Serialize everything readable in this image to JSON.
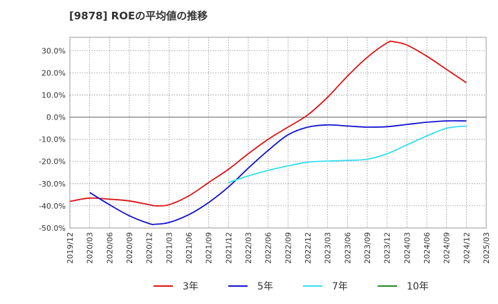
{
  "chart_data": {
    "type": "line",
    "title": "[9878]  ROEの平均値の推移",
    "xlabel": "",
    "ylabel": "",
    "ylim": [
      -50,
      37
    ],
    "yticks": [
      30,
      20,
      10,
      0,
      -10,
      -20,
      -30,
      -40,
      -50
    ],
    "ytick_labels": [
      "30.0%",
      "20.0%",
      "10.0%",
      "0.0%",
      "-10.0%",
      "-20.0%",
      "-30.0%",
      "-40.0%",
      "-50.0%"
    ],
    "xticks": [
      "2019/12",
      "2020/03",
      "2020/06",
      "2020/09",
      "2020/12",
      "2021/03",
      "2021/06",
      "2021/09",
      "2021/12",
      "2022/03",
      "2022/06",
      "2022/09",
      "2022/12",
      "2023/03",
      "2023/06",
      "2023/09",
      "2023/12",
      "2024/03",
      "2024/06",
      "2024/09",
      "2024/12",
      "2025/03"
    ],
    "grid": true,
    "legend_position": "bottom",
    "series": [
      {
        "name": "3年",
        "color": "#dd1111",
        "points": [
          [
            "2019/12",
            -38.0
          ],
          [
            "2020/03",
            -36.5
          ],
          [
            "2020/06",
            -37.0
          ],
          [
            "2020/09",
            -37.8
          ],
          [
            "2020/12",
            -39.5
          ],
          [
            "2021/01",
            -40.0
          ],
          [
            "2021/03",
            -39.5
          ],
          [
            "2021/06",
            -35.5
          ],
          [
            "2021/09",
            -29.5
          ],
          [
            "2021/12",
            -23.5
          ],
          [
            "2022/03",
            -16.5
          ],
          [
            "2022/06",
            -10.0
          ],
          [
            "2022/09",
            -4.5
          ],
          [
            "2022/12",
            1.0
          ],
          [
            "2023/03",
            9.0
          ],
          [
            "2023/06",
            18.5
          ],
          [
            "2023/09",
            27.0
          ],
          [
            "2023/12",
            33.5
          ],
          [
            "2024/01",
            34.0
          ],
          [
            "2024/03",
            32.5
          ],
          [
            "2024/06",
            27.5
          ],
          [
            "2024/09",
            21.5
          ],
          [
            "2024/12",
            15.5
          ]
        ]
      },
      {
        "name": "5年",
        "color": "#1111cc",
        "points": [
          [
            "2020/03",
            -34.0
          ],
          [
            "2020/06",
            -39.5
          ],
          [
            "2020/09",
            -44.5
          ],
          [
            "2020/12",
            -48.0
          ],
          [
            "2021/01",
            -48.3
          ],
          [
            "2021/03",
            -47.5
          ],
          [
            "2021/06",
            -44.0
          ],
          [
            "2021/09",
            -38.5
          ],
          [
            "2021/12",
            -31.5
          ],
          [
            "2022/03",
            -23.0
          ],
          [
            "2022/06",
            -15.0
          ],
          [
            "2022/09",
            -8.0
          ],
          [
            "2022/12",
            -4.5
          ],
          [
            "2023/03",
            -3.5
          ],
          [
            "2023/06",
            -4.0
          ],
          [
            "2023/09",
            -4.5
          ],
          [
            "2023/12",
            -4.3
          ],
          [
            "2024/03",
            -3.3
          ],
          [
            "2024/06",
            -2.3
          ],
          [
            "2024/09",
            -1.7
          ],
          [
            "2024/12",
            -1.7
          ]
        ]
      },
      {
        "name": "7年",
        "color": "#33ddee",
        "points": [
          [
            "2021/12",
            -29.5
          ],
          [
            "2022/03",
            -26.5
          ],
          [
            "2022/06",
            -24.0
          ],
          [
            "2022/09",
            -22.0
          ],
          [
            "2022/12",
            -20.3
          ],
          [
            "2023/03",
            -19.8
          ],
          [
            "2023/06",
            -19.5
          ],
          [
            "2023/09",
            -19.0
          ],
          [
            "2023/12",
            -16.5
          ],
          [
            "2024/03",
            -12.5
          ],
          [
            "2024/06",
            -8.5
          ],
          [
            "2024/09",
            -5.0
          ],
          [
            "2024/12",
            -4.0
          ]
        ]
      },
      {
        "name": "10年",
        "color": "#228822",
        "points": []
      }
    ]
  }
}
